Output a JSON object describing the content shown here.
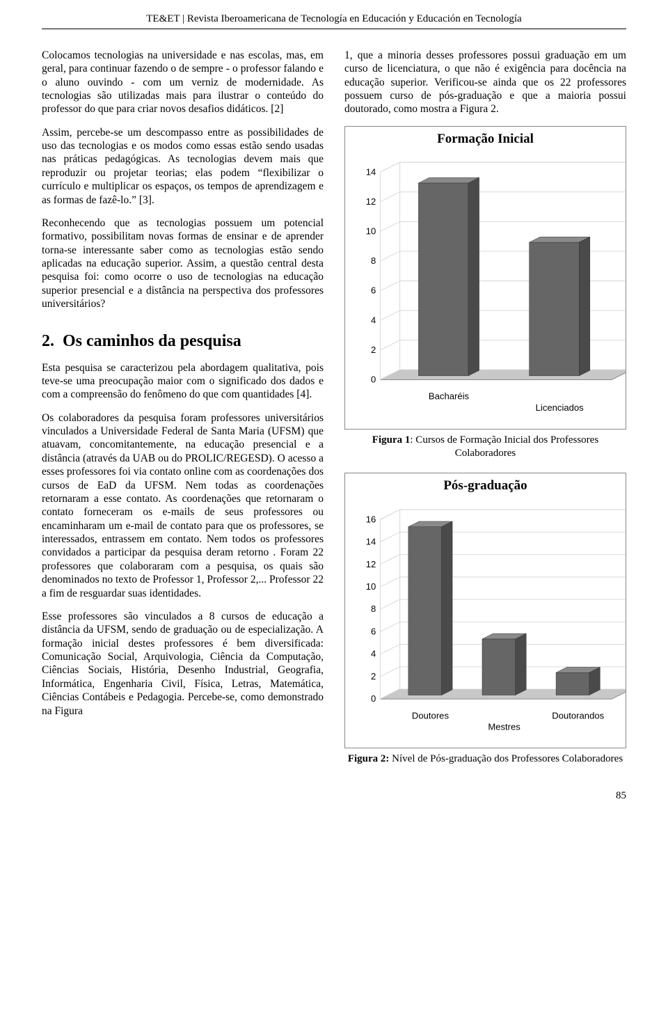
{
  "header": {
    "journal": "TE&ET | Revista Iberoamericana de Tecnología en Educación y Educación en Tecnología"
  },
  "left": {
    "p1": "Colocamos tecnologias na universidade e nas escolas, mas, em geral, para continuar fazendo o de sempre - o professor falando e o aluno ouvindo - com um verniz de modernidade. As tecnologias são utilizadas mais para ilustrar o conteúdo do professor do que para criar novos desafios didáticos. [2]",
    "p2": "Assim, percebe-se um descompasso entre as possibilidades de uso das tecnologias e os modos como essas estão sendo usadas nas práticas pedagógicas. As tecnologias devem mais que reproduzir ou projetar teorias; elas podem “flexibilizar o currículo e multiplicar os espaços, os tempos de aprendizagem e as formas de fazê-lo.” [3].",
    "p3": "Reconhecendo que as tecnologias possuem um potencial formativo, possibilitam novas formas de ensinar e de aprender torna-se interessante saber como as tecnologias estão sendo aplicadas na educação superior. Assim, a questão central desta pesquisa foi: como ocorre o uso de tecnologias na educação superior presencial e a distância na perspectiva dos professores universitários?",
    "sec2_num": "2.",
    "sec2_title": "Os caminhos da pesquisa",
    "p4": "Esta pesquisa se caracterizou pela abordagem qualitativa, pois teve-se uma preocupação maior com o significado dos dados e com a compreensão do fenômeno do que com quantidades [4].",
    "p5": "Os colaboradores da pesquisa foram professores universitários vinculados a Universidade Federal de Santa Maria (UFSM) que atuavam, concomitantemente, na educação presencial e a distância (através da UAB ou do PROLIC/REGESD). O acesso a esses professores foi via contato online com as coordenações dos cursos de EaD da UFSM. Nem todas as coordenações retornaram a esse contato. As coordenações que retornaram o contato forneceram os e-mails de seus professores ou encaminharam um e-mail de contato para que os professores, se interessados, entrassem em contato. Nem todos os professores convidados a participar da pesquisa deram retorno . Foram 22 professores que colaboraram com a pesquisa, os quais são denominados no texto de Professor 1, Professor 2,... Professor 22 a fim de resguardar suas identidades.",
    "p6": "Esse professores são vinculados a 8 cursos de educação a distância da UFSM, sendo de graduação ou de especialização. A formação inicial destes professores é bem diversificada: Comunicação Social, Arquivologia, Ciência da Computação, Ciências Sociais, História, Desenho Industrial, Geografia, Informática, Engenharia Civil, Física, Letras, Matemática, Ciências Contábeis e Pedagogia. Percebe-se, como demonstrado na Figura"
  },
  "right": {
    "p1": "1, que a minoria desses professores possui graduação em um curso de licenciatura, o que não é exigência para docência na educação superior. Verificou-se ainda que os 22 professores possuem curso de pós-graduação e que a maioria possui doutorado, como mostra a Figura 2."
  },
  "chart1": {
    "type": "bar-3d",
    "title": "Formação Inicial",
    "categories": [
      "Bacharéis",
      "Licenciados"
    ],
    "values": [
      13,
      9
    ],
    "ylim": [
      0,
      14
    ],
    "ytick_step": 2,
    "yticks": [
      0,
      2,
      4,
      6,
      8,
      10,
      12,
      14
    ],
    "bar_color": "#666666",
    "bar_top_color": "#8a8a8a",
    "bar_side_color": "#4a4a4a",
    "floor_color": "#c8c8c8",
    "floor_edge": "#888888",
    "wall_color": "#ffffff",
    "grid_color": "#d9d9d9",
    "border_color": "#888888",
    "axis_text_color": "#000000",
    "title_fontsize": 19,
    "tick_fontsize": 13,
    "label_fontsize": 13,
    "caption_label": "Figura 1",
    "caption_text": ": Cursos de Formação Inicial dos Professores Colaboradores"
  },
  "chart2": {
    "type": "bar-3d",
    "title": "Pós-graduação",
    "categories": [
      "Doutores",
      "Mestres",
      "Doutorandos"
    ],
    "values": [
      15,
      5,
      2
    ],
    "ylim": [
      0,
      16
    ],
    "ytick_step": 2,
    "yticks": [
      0,
      2,
      4,
      6,
      8,
      10,
      12,
      14,
      16
    ],
    "bar_color": "#666666",
    "bar_top_color": "#8a8a8a",
    "bar_side_color": "#4a4a4a",
    "floor_color": "#c8c8c8",
    "floor_edge": "#888888",
    "wall_color": "#ffffff",
    "grid_color": "#d9d9d9",
    "border_color": "#888888",
    "axis_text_color": "#000000",
    "title_fontsize": 19,
    "tick_fontsize": 13,
    "label_fontsize": 13,
    "caption_label": "Figura 2:",
    "caption_text": " Nível de Pós-graduação dos Professores Colaboradores"
  },
  "footer": {
    "page": "85"
  }
}
